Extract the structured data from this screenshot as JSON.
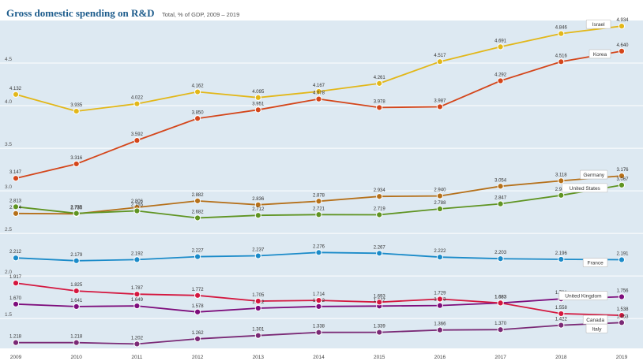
{
  "header": {
    "title": "Gross domestic spending on R&D",
    "subtitle": "Total, % of GDP, 2009 – 2019"
  },
  "chart_data": {
    "type": "line",
    "x": [
      "2009",
      "2010",
      "2011",
      "2012",
      "2013",
      "2014",
      "2015",
      "2016",
      "2017",
      "2018",
      "2019"
    ],
    "y_ticks": [
      "1.5",
      "2.0",
      "2.5",
      "3.0",
      "3.5",
      "4.0",
      "4.5"
    ],
    "ylim": [
      1.15,
      5.0
    ],
    "grid": true,
    "background": "#dde9f2",
    "series": [
      {
        "name": "Israel",
        "color": "#e2b719",
        "values": [
          4.132,
          3.935,
          4.022,
          4.162,
          4.095,
          4.167,
          4.261,
          4.517,
          4.691,
          4.846,
          4.934
        ]
      },
      {
        "name": "Korea",
        "color": "#d4461b",
        "values": [
          3.147,
          3.316,
          3.592,
          3.85,
          3.951,
          4.078,
          3.978,
          3.987,
          4.292,
          4.516,
          4.64
        ]
      },
      {
        "name": "Germany",
        "color": "#b5701a",
        "values": [
          2.734,
          2.73,
          2.806,
          2.882,
          2.836,
          2.878,
          2.934,
          2.94,
          3.054,
          3.118,
          3.176
        ]
      },
      {
        "name": "United States",
        "color": "#5f9422",
        "values": [
          2.813,
          2.735,
          2.765,
          2.682,
          2.712,
          2.721,
          2.719,
          2.788,
          2.847,
          2.947,
          3.067
        ]
      },
      {
        "name": "France",
        "color": "#1b8bc9",
        "values": [
          2.212,
          2.179,
          2.192,
          2.227,
          2.237,
          2.276,
          2.267,
          2.222,
          2.203,
          2.196,
          2.191
        ]
      },
      {
        "name": "United Kingdom",
        "color": "#7d0d7c",
        "values": [
          1.67,
          1.641,
          1.649,
          1.578,
          1.622,
          1.642,
          1.647,
          1.653,
          1.683,
          1.731,
          1.756
        ]
      },
      {
        "name": "Canada",
        "color": "#d4173f",
        "values": [
          1.917,
          1.825,
          1.787,
          1.772,
          1.705,
          1.714,
          1.693,
          1.729,
          1.683,
          1.558,
          1.538
        ]
      },
      {
        "name": "Italy",
        "color": "#7a2a76",
        "values": [
          1.218,
          1.218,
          1.202,
          1.262,
          1.301,
          1.338,
          1.339,
          1.366,
          1.37,
          1.422,
          1.453
        ]
      }
    ]
  }
}
